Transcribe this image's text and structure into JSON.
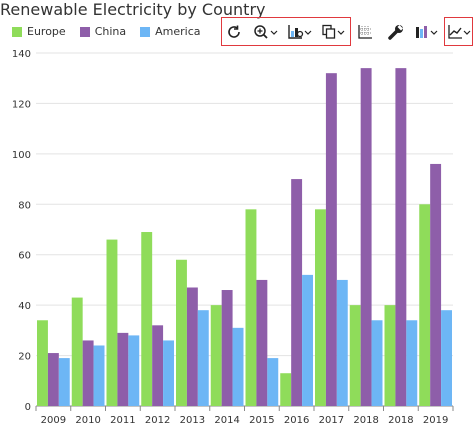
{
  "chart_data": {
    "type": "bar",
    "title": "Renewable Electricity by Country",
    "categories": [
      "2009",
      "2010",
      "2011",
      "2012",
      "2013",
      "2014",
      "2015",
      "2016",
      "2017",
      "2018",
      "2018",
      "2019"
    ],
    "series": [
      {
        "name": "Europe",
        "color": "#8fdc5a",
        "values": [
          34,
          43,
          66,
          69,
          58,
          40,
          78,
          13,
          78,
          40,
          40,
          80
        ]
      },
      {
        "name": "China",
        "color": "#8e5ea9",
        "values": [
          21,
          26,
          29,
          32,
          47,
          46,
          50,
          90,
          132,
          134,
          134,
          96
        ]
      },
      {
        "name": "America",
        "color": "#6db6f5",
        "values": [
          19,
          24,
          28,
          26,
          38,
          31,
          19,
          52,
          50,
          34,
          34,
          38
        ]
      }
    ],
    "ylim": [
      0,
      140
    ],
    "yticks": [
      0,
      20,
      40,
      60,
      80,
      100,
      120,
      140
    ],
    "grid": true,
    "legend": "top-left"
  },
  "toolbar": {
    "tools": [
      {
        "icon": "refresh-icon"
      },
      {
        "icon": "zoom-in-icon"
      },
      {
        "icon": "chart-settings-icon"
      },
      {
        "icon": "copy-icon"
      },
      {
        "icon": "gridlines-icon"
      },
      {
        "icon": "wrench-icon"
      },
      {
        "icon": "bar-chart-icon"
      },
      {
        "icon": "line-chart-icon"
      }
    ]
  }
}
